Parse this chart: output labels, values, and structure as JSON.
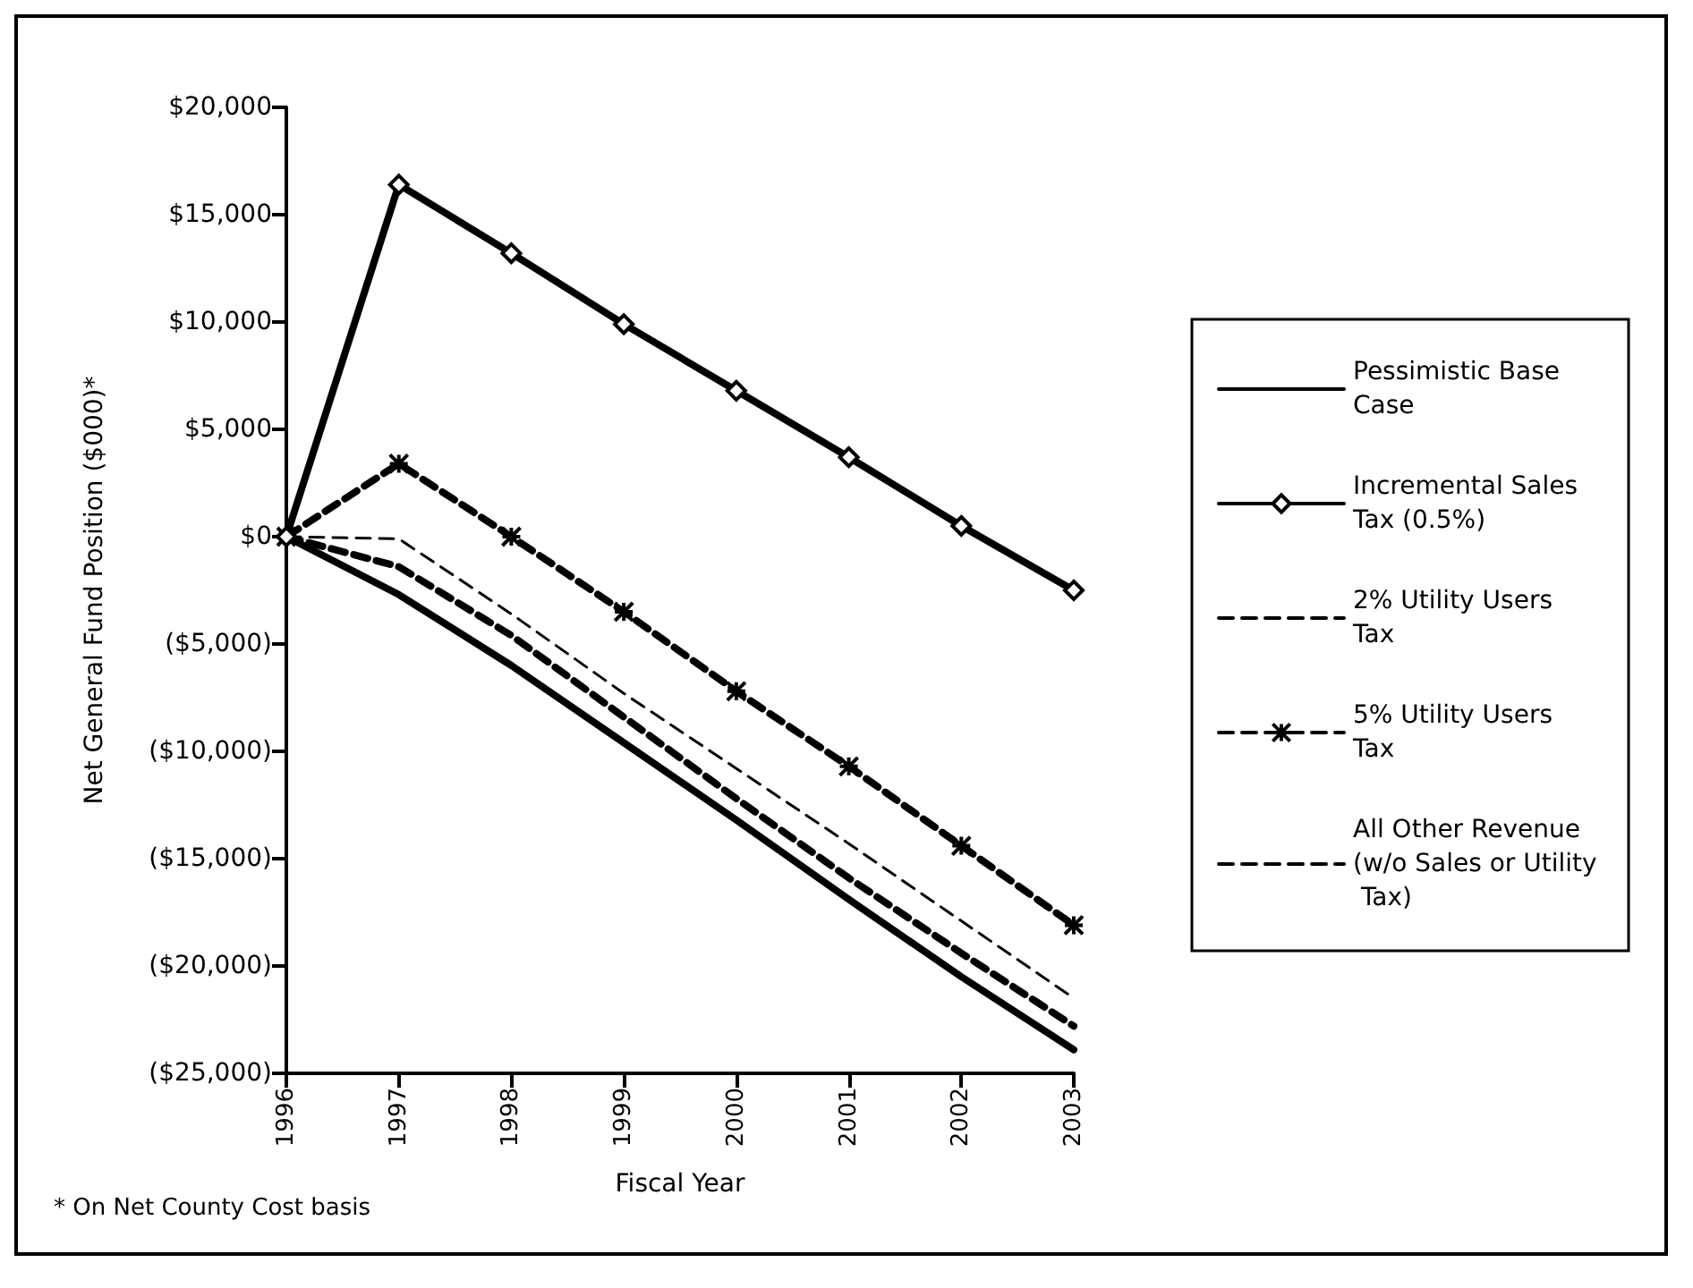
{
  "chart_data": {
    "type": "line",
    "xlabel": "Fiscal Year",
    "ylabel": "Net General Fund Position ($000)*",
    "annotations": [
      "* On Net County Cost basis"
    ],
    "categories": [
      "1996",
      "1997",
      "1998",
      "1999",
      "2000",
      "2001",
      "2002",
      "2003"
    ],
    "ylim": [
      -25000,
      20000
    ],
    "yticks": [
      {
        "value": -25000,
        "label": "($25,000)"
      },
      {
        "value": -20000,
        "label": "($20,000)"
      },
      {
        "value": -15000,
        "label": "($15,000)"
      },
      {
        "value": -10000,
        "label": "($10,000)"
      },
      {
        "value": -5000,
        "label": "($5,000)"
      },
      {
        "value": 0,
        "label": "$0"
      },
      {
        "value": 5000,
        "label": "$5,000"
      },
      {
        "value": 10000,
        "label": "$10,000"
      },
      {
        "value": 15000,
        "label": "$15,000"
      },
      {
        "value": 20000,
        "label": "$20,000"
      }
    ],
    "grid": false,
    "legend": "right",
    "series": [
      {
        "name": "Pessimistic Base Case",
        "color": "#000000",
        "line_style": "solid",
        "marker": "none",
        "values": [
          0,
          -2700,
          -6000,
          -9600,
          -13200,
          -16900,
          -20500,
          -23900
        ]
      },
      {
        "name": "Incremental Sales Tax (0.5%)",
        "color": "#000000",
        "line_style": "solid",
        "marker": "diamond",
        "values": [
          0,
          16400,
          13200,
          9900,
          6800,
          3700,
          500,
          -2500
        ]
      },
      {
        "name": "2% Utility Users Tax",
        "color": "#000000",
        "line_style": "dashed",
        "marker": "none",
        "values": [
          0,
          -100,
          -3600,
          -7300,
          -10800,
          -14300,
          -17900,
          -21500
        ]
      },
      {
        "name": "5% Utility Users Tax",
        "color": "#000000",
        "line_style": "dashed",
        "marker": "cross",
        "values": [
          0,
          3400,
          0,
          -3500,
          -7200,
          -10700,
          -14400,
          -18100
        ]
      },
      {
        "name": "All Other Revenue (w/o Sales or Utility Tax)",
        "color": "#000000",
        "line_style": "dashed",
        "marker": "none",
        "values": [
          0,
          -1400,
          -4600,
          -8400,
          -12200,
          -15900,
          -19400,
          -22800
        ]
      }
    ]
  }
}
